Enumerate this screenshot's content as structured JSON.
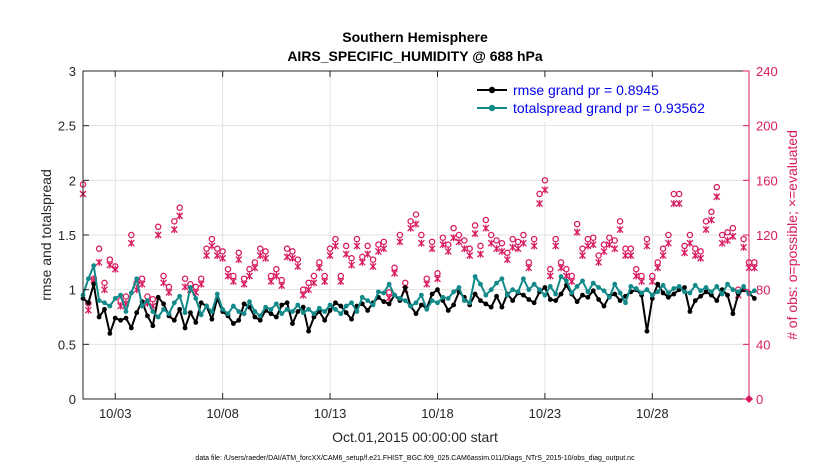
{
  "chart_data": {
    "type": "line",
    "title": "Southern Hemisphere",
    "subtitle": "AIRS_SPECIFIC_HUMIDITY @ 688 hPa",
    "xlabel": "Oct.01,2015 00:00:00 start",
    "ylabel": "rmse and totalspread",
    "y2label": "# of obs: o=possible; ×=evaluated",
    "x_range": [
      1.5,
      32.5
    ],
    "ylim": [
      0,
      3
    ],
    "y2lim": [
      0,
      240
    ],
    "x_ticks": [
      3,
      8,
      13,
      18,
      23,
      28
    ],
    "x_tick_labels": [
      "10/03",
      "10/08",
      "10/13",
      "10/18",
      "10/23",
      "10/28"
    ],
    "y_ticks": [
      0,
      0.5,
      1,
      1.5,
      2,
      2.5,
      3
    ],
    "y_tick_labels": [
      "0",
      "0.5",
      "1",
      "1.5",
      "2",
      "2.5",
      "3"
    ],
    "y2_ticks": [
      0,
      40,
      80,
      120,
      160,
      200,
      240
    ],
    "y2_tick_labels": [
      "0",
      "40",
      "80",
      "120",
      "160",
      "200",
      "240"
    ],
    "grid": true,
    "legend_position": "top-right",
    "colors": {
      "rmse": "#000000",
      "spread": "#138a8a",
      "obs": "#d81b60",
      "axis_right": "#d81b60",
      "legend_text": "#0000ee"
    },
    "series": [
      {
        "name": "rmse grand pr = 0.8945",
        "x_start": 1.5,
        "x_step": 0.25,
        "values": [
          0.92,
          0.88,
          1.05,
          0.75,
          0.82,
          0.6,
          0.74,
          0.72,
          0.74,
          0.65,
          0.79,
          0.89,
          0.76,
          0.67,
          0.93,
          0.87,
          0.76,
          0.72,
          0.82,
          0.65,
          0.79,
          0.7,
          0.88,
          0.85,
          0.73,
          0.92,
          0.8,
          0.76,
          0.69,
          0.72,
          0.87,
          0.84,
          0.75,
          0.72,
          0.81,
          0.78,
          0.75,
          0.86,
          0.88,
          0.69,
          0.8,
          0.84,
          0.62,
          0.75,
          0.8,
          0.72,
          0.81,
          0.88,
          0.85,
          0.79,
          0.73,
          0.85,
          0.87,
          0.81,
          0.88,
          0.93,
          0.89,
          0.87,
          0.95,
          0.9,
          1.02,
          0.85,
          0.78,
          0.86,
          0.83,
          0.96,
          1.0,
          0.9,
          0.81,
          0.86,
          0.98,
          0.93,
          0.86,
          0.96,
          0.9,
          0.87,
          0.84,
          0.94,
          0.84,
          0.96,
          0.9,
          0.97,
          0.95,
          0.91,
          0.88,
          0.98,
          1.02,
          0.91,
          0.9,
          0.96,
          1.04,
          0.96,
          0.89,
          0.95,
          0.93,
          0.99,
          0.91,
          0.85,
          0.94,
          0.96,
          0.9,
          0.94,
          0.98,
          1.0,
          0.95,
          0.62,
          0.92,
          1.05,
          0.97,
          0.93,
          0.96,
          1.0,
          1.02,
          0.8,
          0.9,
          0.94,
          0.98,
          0.95,
          0.9,
          1.0,
          0.95,
          0.78,
          0.96,
          1.0,
          0.97,
          0.92
        ],
        "color": "#000000"
      },
      {
        "name": "totalspread grand pr = 0.93562",
        "x_start": 1.5,
        "x_step": 0.25,
        "values": [
          0.95,
          1.1,
          1.22,
          0.9,
          0.88,
          0.85,
          0.92,
          0.95,
          0.8,
          0.97,
          1.1,
          0.85,
          0.9,
          0.8,
          0.75,
          0.82,
          0.78,
          0.88,
          0.94,
          0.79,
          1.02,
          0.92,
          0.77,
          0.85,
          0.8,
          0.96,
          0.82,
          0.78,
          0.85,
          0.8,
          0.78,
          0.89,
          0.8,
          0.76,
          0.84,
          0.82,
          0.87,
          0.78,
          0.82,
          0.8,
          0.86,
          0.79,
          0.82,
          0.78,
          0.83,
          0.8,
          0.86,
          0.82,
          0.78,
          0.85,
          0.88,
          0.8,
          0.93,
          0.9,
          0.86,
          0.98,
          0.97,
          1.05,
          0.95,
          0.92,
          0.9,
          0.85,
          0.88,
          0.95,
          0.82,
          0.9,
          0.88,
          0.93,
          0.92,
          0.98,
          1.02,
          0.9,
          0.88,
          1.12,
          1.05,
          0.95,
          1.0,
          1.06,
          1.1,
          0.95,
          1.0,
          0.98,
          1.1,
          1.0,
          1.05,
          1.0,
          0.95,
          1.03,
          0.96,
          1.12,
          1.08,
          0.97,
          1.03,
          1.08,
          0.98,
          1.06,
          1.02,
          0.99,
          0.93,
          1.05,
          0.97,
          0.88,
          1.03,
          1.01,
          0.97,
          1.0,
          0.95,
          0.98,
          1.04,
          0.97,
          1.01,
          1.03,
          0.98,
          0.97,
          1.04,
          0.99,
          1.02,
          0.98,
          1.03,
          0.96,
          1.05,
          1.0,
          0.98,
          1.03,
          0.96,
          0.99
        ],
        "color": "#138a8a"
      },
      {
        "name": "# of obs possible (o)",
        "x_start": 1.5,
        "x_step": 0.25,
        "values": [
          157,
          70,
          88,
          110,
          85,
          102,
          97,
          72,
          75,
          120,
          85,
          88,
          75,
          73,
          126,
          90,
          82,
          130,
          140,
          88,
          84,
          82,
          88,
          110,
          117,
          110,
          108,
          95,
          90,
          107,
          88,
          95,
          100,
          110,
          108,
          90,
          95,
          87,
          110,
          108,
          102,
          80,
          85,
          90,
          100,
          90,
          110,
          117,
          90,
          112,
          103,
          117,
          104,
          112,
          102,
          113,
          115,
          78,
          96,
          120,
          85,
          130,
          135,
          120,
          88,
          115,
          92,
          118,
          113,
          125,
          120,
          116,
          110,
          127,
          112,
          131,
          120,
          116,
          114,
          107,
          117,
          115,
          120,
          100,
          117,
          150,
          160,
          95,
          117,
          100,
          95,
          90,
          128,
          110,
          117,
          118,
          105,
          113,
          118,
          116,
          130,
          110,
          110,
          95,
          90,
          117,
          90,
          100,
          110,
          120,
          150,
          150,
          112,
          120,
          110,
          108,
          130,
          137,
          155,
          120,
          122,
          125,
          80,
          117,
          100,
          100
        ],
        "color": "#d81b60"
      },
      {
        "name": "# of obs evaluated (×)",
        "x_start": 1.5,
        "x_step": 0.25,
        "values": [
          150,
          65,
          87,
          100,
          80,
          98,
          95,
          68,
          70,
          114,
          80,
          84,
          70,
          68,
          120,
          85,
          78,
          124,
          134,
          82,
          80,
          78,
          84,
          105,
          112,
          105,
          103,
          90,
          86,
          102,
          84,
          90,
          96,
          105,
          103,
          86,
          90,
          83,
          104,
          103,
          97,
          76,
          80,
          85,
          96,
          86,
          105,
          112,
          86,
          106,
          98,
          112,
          100,
          106,
          97,
          108,
          110,
          74,
          92,
          115,
          80,
          125,
          128,
          114,
          84,
          110,
          88,
          113,
          108,
          118,
          115,
          110,
          105,
          121,
          106,
          125,
          114,
          110,
          108,
          102,
          111,
          110,
          114,
          96,
          112,
          143,
          153,
          90,
          112,
          96,
          90,
          86,
          122,
          105,
          112,
          113,
          100,
          108,
          113,
          110,
          124,
          105,
          105,
          90,
          86,
          112,
          86,
          96,
          105,
          114,
          143,
          143,
          107,
          114,
          105,
          103,
          124,
          131,
          148,
          114,
          116,
          119,
          76,
          111,
          96,
          96
        ],
        "color": "#d81b60"
      }
    ],
    "footer": "data file: /Users/raeder/DAI/ATM_forcXX/CAM6_setup/f.e21.FHIST_BGC.f09_025.CAM6assim.011/Diags_NTrS_2015-10/obs_diag_output.nc"
  }
}
